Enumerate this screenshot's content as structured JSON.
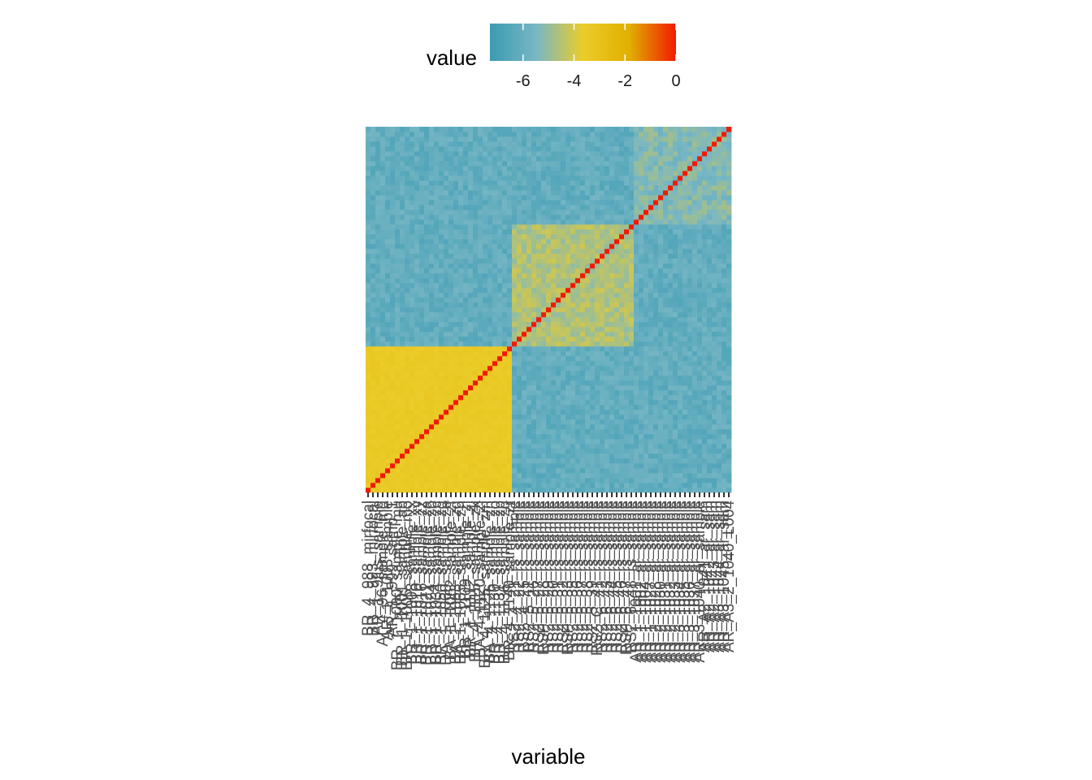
{
  "chart_data": {
    "type": "heatmap",
    "title": "",
    "xlabel": "variable",
    "ylabel": "",
    "legend": {
      "title": "value",
      "position": "top",
      "range": [
        -7.3,
        0
      ],
      "ticks": [
        -6,
        -4,
        -2,
        0
      ],
      "tick_labels": [
        "-6",
        "-4",
        "-2",
        "0"
      ],
      "colors": [
        "#3B9AB2",
        "#78B7C5",
        "#EBCC2A",
        "#E1AF00",
        "#F21A00"
      ]
    },
    "matrix": {
      "n": 75,
      "diagonal_value": 0,
      "groups": [
        {
          "name": "BR",
          "start": 0,
          "count": 30,
          "within_value": -3.5
        },
        {
          "name": "RS",
          "start": 30,
          "count": 25,
          "within_value": -4.6
        },
        {
          "name": "AR",
          "start": 55,
          "count": 20,
          "within_value": -5.3
        }
      ],
      "between_value": -6.1,
      "noise_amplitude": 0.5,
      "note_seed": 7
    },
    "x_tick_labels": [
      "BR_4_988_mirfocal",
      "BR_4_993_mirfocal",
      "AR_1_9fus_sample",
      "AI_4_96_sample_md",
      "AR_1_1003_sample",
      "AR_1_999_samp_1",
      "BR_1_1000_sample_mu",
      "BR_1_1001_sample_ab",
      "BR_1_1006_sample_mo",
      "BR_1_1008_sample_xx",
      "BR_1_1010_sample_xy",
      "BR_1_1016_sample_zz",
      "BR_1_1021_sample_za",
      "BR_1_1024_sample_zb",
      "BR_1_1034_sample_zc",
      "BR_1_1050_sample_zd",
      "DA_1_1060_sample_ze",
      "BA_1_1062_sample_zf",
      "BA_1_1063_sample_zg",
      "BA_1_1065_sample_zh",
      "BR_1_1109_sample_zi",
      "BR_1_1112_sample_zj",
      "BR_4_1115_sample_zk",
      "BA_4_1120_sample_zl",
      "BR_4_1125_sample_zm",
      "BA_4_1126_sample_zn",
      "BR_4_1130_sample_zo",
      "BR_4_1131_sample_zp",
      "BR_4_1136_sample_zq",
      "BR_4_1140_sample_zr",
      "RS2_4_21_rs_sample",
      "RS2_4_22_rs_sample",
      "RS2_4_25_rs_sample",
      "RS2_5_11_rs_sample",
      "RS2_5_26_rs_sample",
      "RS2_5_27_rs_sample",
      "RSP_5_28_rs_sample",
      "RS2_5_29_rs_sample",
      "RS2_5_30_rs_sample",
      "RS2_5_31_rs_sample",
      "RS2_5_32_rs_sample",
      "RSP_5_33_rs_sample",
      "RS2_5_35_rs_sample",
      "RS2_5_36_rs_sample",
      "RS2_5_37_rs_sample",
      "RS2_5_38_rs_sample",
      "RS2_5_39_rs_sample",
      "RS2_C_41_rs_sample",
      "RS2_6_42_rs_sample",
      "RS2_6_43_rs_sample",
      "RS2_6_44_rs_sample",
      "RS2_6_45_rs_sample",
      "RS2_6_46_rs_sample",
      "RSP_6_47_rs_sample",
      "RS2_6_48_rs_sample",
      "AR_1_1001_ar_sample",
      "AR_1_1002_ar_sample",
      "AR_1_1004_ar_sample",
      "AR_1_1027_ar_sample",
      "AR_2_1028_ar_sample",
      "AR_2_1030_ar_sample",
      "AR_2_1031_ar_sample",
      "AR_2_1032_ar_sample",
      "AR_2_1033_ar_sample",
      "AR_3_1034_ar_sample",
      "AR_3_1035_ar_sample",
      "AR_3_1036_ar_sample",
      "AR_3_1037_ar_sample",
      "AR_3_1040_ar_sample",
      "AR_A2_1041_ar_sam",
      "AR_A2_1042_ar_sam",
      "AR_A2_1043_ar_sam",
      "AR_A3_1044_ar_sam",
      "AR_A3_1045_ar_sam",
      "AR_A3_2_1040_L004"
    ]
  }
}
